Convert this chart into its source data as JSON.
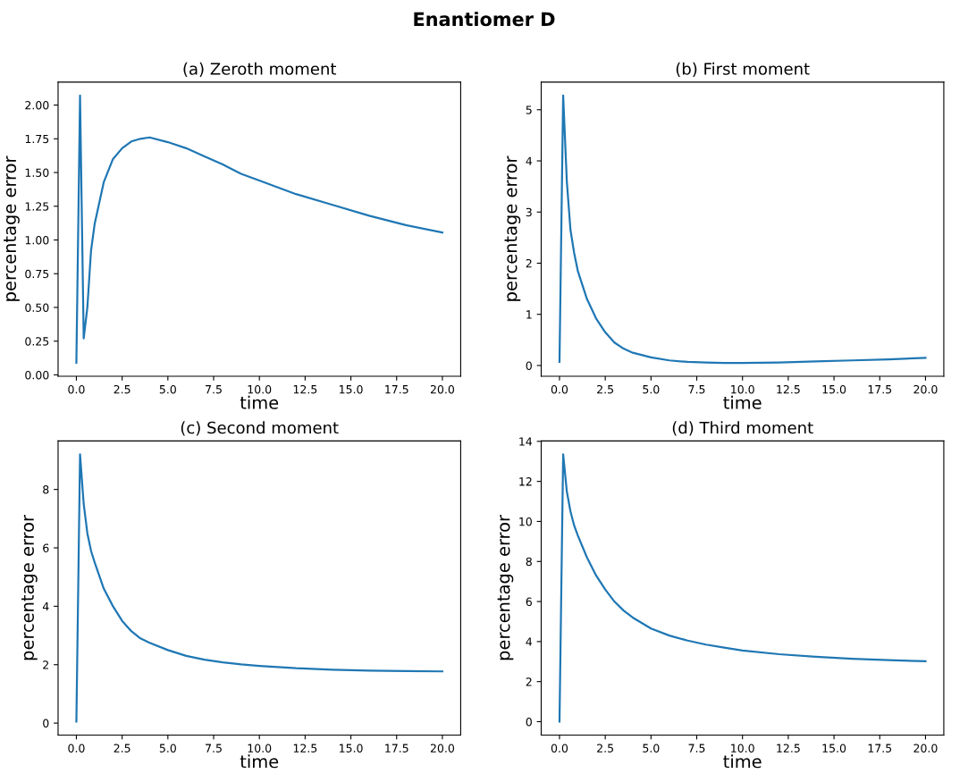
{
  "chart_data": [
    {
      "type": "line",
      "title": "(a) Zeroth moment",
      "xlabel": "time",
      "ylabel": "percentage error",
      "annotations": [
        "Enantiomer D"
      ],
      "x": [
        0,
        0.2,
        0.4,
        0.6,
        0.8,
        1.0,
        1.5,
        2,
        2.5,
        3,
        3.5,
        4,
        5,
        6,
        7,
        8,
        9,
        10,
        12,
        14,
        16,
        18,
        20
      ],
      "series": [
        {
          "color": "#1f77b4",
          "values": [
            0.09,
            2.07,
            0.27,
            0.5,
            0.92,
            1.12,
            1.43,
            1.6,
            1.68,
            1.73,
            1.75,
            1.76,
            1.725,
            1.68,
            1.62,
            1.56,
            1.49,
            1.44,
            1.34,
            1.26,
            1.18,
            1.11,
            1.055
          ]
        }
      ],
      "xlim": [
        -1,
        21
      ],
      "ylim": [
        -0.01,
        2.17
      ],
      "xticks": [
        {
          "value": 0,
          "label": "0.0"
        },
        {
          "value": 2.5,
          "label": "2.5"
        },
        {
          "value": 5,
          "label": "5.0"
        },
        {
          "value": 7.5,
          "label": "7.5"
        },
        {
          "value": 10,
          "label": "10.0"
        },
        {
          "value": 12.5,
          "label": "12.5"
        },
        {
          "value": 15,
          "label": "15.0"
        },
        {
          "value": 17.5,
          "label": "17.5"
        },
        {
          "value": 20,
          "label": "20.0"
        }
      ],
      "yticks": [
        {
          "value": 0,
          "label": "0.00"
        },
        {
          "value": 0.25,
          "label": "0.25"
        },
        {
          "value": 0.5,
          "label": "0.50"
        },
        {
          "value": 0.75,
          "label": "0.75"
        },
        {
          "value": 1,
          "label": "1.00"
        },
        {
          "value": 1.25,
          "label": "1.25"
        },
        {
          "value": 1.5,
          "label": "1.50"
        },
        {
          "value": 1.75,
          "label": "1.75"
        },
        {
          "value": 2,
          "label": "2.00"
        }
      ],
      "grid": false,
      "legend": false,
      "marker": "none",
      "line_style": "solid"
    },
    {
      "type": "line",
      "title": "(b) First moment",
      "xlabel": "time",
      "ylabel": "percentage error",
      "x": [
        0,
        0.2,
        0.4,
        0.6,
        0.8,
        1.0,
        1.5,
        2,
        2.5,
        3,
        3.5,
        4,
        5,
        6,
        7,
        8,
        9,
        10,
        12,
        14,
        16,
        18,
        20
      ],
      "series": [
        {
          "color": "#1f77b4",
          "values": [
            0.07,
            5.28,
            3.6,
            2.65,
            2.2,
            1.85,
            1.3,
            0.92,
            0.65,
            0.45,
            0.33,
            0.25,
            0.16,
            0.1,
            0.07,
            0.06,
            0.05,
            0.05,
            0.06,
            0.08,
            0.1,
            0.12,
            0.15
          ]
        }
      ],
      "xlim": [
        -1,
        21
      ],
      "ylim": [
        -0.21,
        5.54
      ],
      "xticks": [
        {
          "value": 0,
          "label": "0.0"
        },
        {
          "value": 2.5,
          "label": "2.5"
        },
        {
          "value": 5,
          "label": "5.0"
        },
        {
          "value": 7.5,
          "label": "7.5"
        },
        {
          "value": 10,
          "label": "10.0"
        },
        {
          "value": 12.5,
          "label": "12.5"
        },
        {
          "value": 15,
          "label": "15.0"
        },
        {
          "value": 17.5,
          "label": "17.5"
        },
        {
          "value": 20,
          "label": "20.0"
        }
      ],
      "yticks": [
        0,
        1,
        2,
        3,
        4,
        5
      ],
      "grid": false,
      "legend": false,
      "marker": "none",
      "line_style": "solid"
    },
    {
      "type": "line",
      "title": "(c) Second moment",
      "xlabel": "time",
      "ylabel": "percentage error",
      "x": [
        0,
        0.2,
        0.4,
        0.6,
        0.8,
        1.0,
        1.5,
        2,
        2.5,
        3,
        3.5,
        4,
        5,
        6,
        7,
        8,
        9,
        10,
        12,
        14,
        16,
        18,
        20
      ],
      "series": [
        {
          "color": "#1f77b4",
          "values": [
            0.05,
            9.2,
            7.5,
            6.5,
            5.9,
            5.5,
            4.6,
            4.0,
            3.5,
            3.15,
            2.9,
            2.75,
            2.5,
            2.3,
            2.17,
            2.08,
            2.01,
            1.96,
            1.88,
            1.83,
            1.8,
            1.78,
            1.77
          ]
        }
      ],
      "xlim": [
        -1,
        21
      ],
      "ylim": [
        -0.41,
        9.66
      ],
      "xticks": [
        {
          "value": 0,
          "label": "0.0"
        },
        {
          "value": 2.5,
          "label": "2.5"
        },
        {
          "value": 5,
          "label": "5.0"
        },
        {
          "value": 7.5,
          "label": "7.5"
        },
        {
          "value": 10,
          "label": "10.0"
        },
        {
          "value": 12.5,
          "label": "12.5"
        },
        {
          "value": 15,
          "label": "15.0"
        },
        {
          "value": 17.5,
          "label": "17.5"
        },
        {
          "value": 20,
          "label": "20.0"
        }
      ],
      "yticks": [
        0,
        2,
        4,
        6,
        8
      ],
      "grid": false,
      "legend": false,
      "marker": "none",
      "line_style": "solid"
    },
    {
      "type": "line",
      "title": "(d) Third moment",
      "xlabel": "time",
      "ylabel": "percentage error",
      "x": [
        0,
        0.2,
        0.4,
        0.6,
        0.8,
        1.0,
        1.5,
        2,
        2.5,
        3,
        3.5,
        4,
        5,
        6,
        7,
        8,
        9,
        10,
        12,
        14,
        16,
        18,
        20
      ],
      "series": [
        {
          "color": "#1f77b4",
          "values": [
            0,
            13.35,
            11.5,
            10.5,
            9.8,
            9.3,
            8.2,
            7.3,
            6.6,
            6.0,
            5.55,
            5.2,
            4.65,
            4.3,
            4.05,
            3.85,
            3.7,
            3.55,
            3.37,
            3.24,
            3.14,
            3.07,
            3.02
          ]
        }
      ],
      "xlim": [
        -1,
        21
      ],
      "ylim": [
        -0.67,
        14.02
      ],
      "xticks": [
        {
          "value": 0,
          "label": "0.0"
        },
        {
          "value": 2.5,
          "label": "2.5"
        },
        {
          "value": 5,
          "label": "5.0"
        },
        {
          "value": 7.5,
          "label": "7.5"
        },
        {
          "value": 10,
          "label": "10.0"
        },
        {
          "value": 12.5,
          "label": "12.5"
        },
        {
          "value": 15,
          "label": "15.0"
        },
        {
          "value": 17.5,
          "label": "17.5"
        },
        {
          "value": 20,
          "label": "20.0"
        }
      ],
      "yticks": [
        0,
        2,
        4,
        6,
        8,
        10,
        12,
        14
      ],
      "grid": false,
      "legend": false,
      "marker": "none",
      "line_style": "solid"
    }
  ]
}
